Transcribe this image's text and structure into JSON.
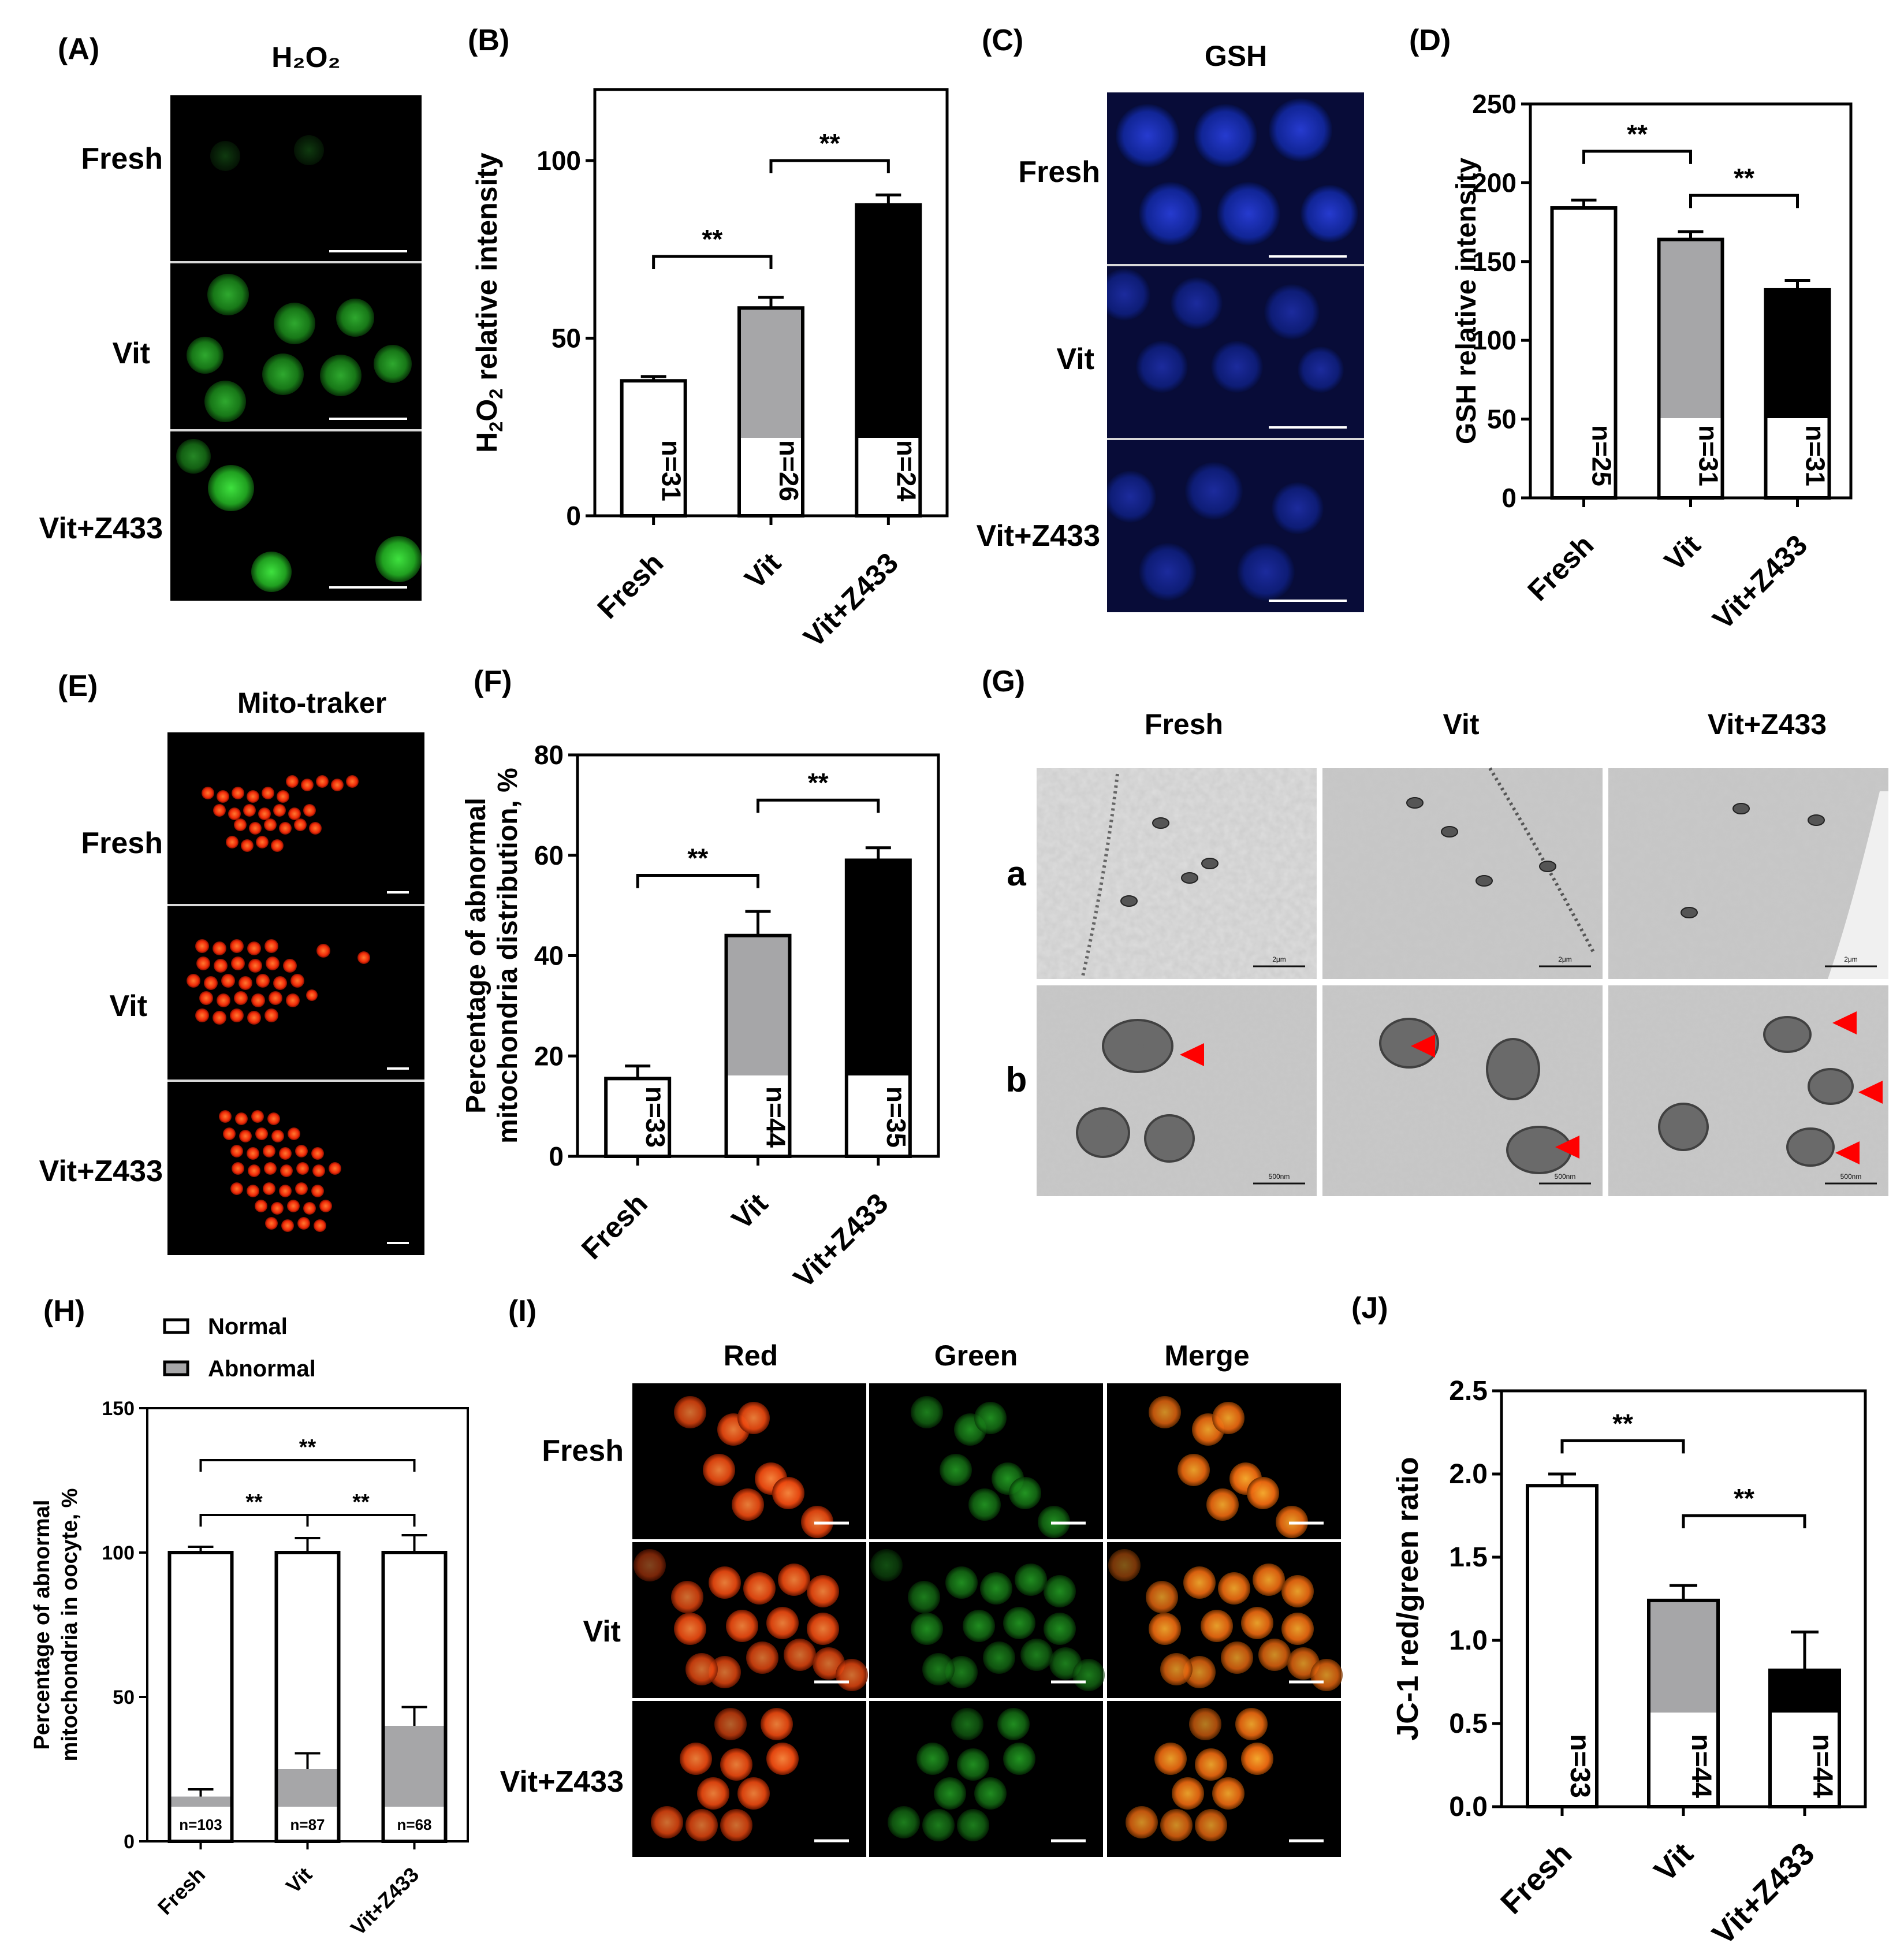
{
  "panels": {
    "A": {
      "label": "(A)",
      "title": "H₂O₂",
      "rows": [
        "Fresh",
        "Vit",
        "Vit+Z433"
      ]
    },
    "C": {
      "label": "(C)",
      "title": "GSH",
      "rows": [
        "Fresh",
        "Vit",
        "Vit+Z433"
      ]
    },
    "E": {
      "label": "(E)",
      "title": "Mito-traker",
      "rows": [
        "Fresh",
        "Vit",
        "Vit+Z433"
      ]
    },
    "G": {
      "label": "(G)",
      "columns": [
        "Fresh",
        "Vit",
        "Vit+Z433"
      ],
      "rows": [
        "a",
        "b"
      ],
      "scale_a": "2μm",
      "scale_b": "500nm"
    },
    "I": {
      "label": "(I)",
      "columns": [
        "Red",
        "Green",
        "Merge"
      ],
      "rows": [
        "Fresh",
        "Vit",
        "Vit+Z433"
      ]
    }
  },
  "colors": {
    "fresh": "#ffffff",
    "vit": "#a6a6a8",
    "vitz": "#000000",
    "h2o2": "#2fb52f",
    "gsh": "#1d2fb8",
    "mito": "#ff3a10",
    "arrow": "#ff0000"
  },
  "chart_data": [
    {
      "id": "B",
      "label": "(B)",
      "type": "bar",
      "categories": [
        "Fresh",
        "Vit",
        "Vit+Z433"
      ],
      "values": [
        38,
        58.5,
        87.5
      ],
      "errors": [
        1.2,
        3,
        2.8
      ],
      "n_labels": [
        "n=31",
        "n=26",
        "n=24"
      ],
      "ylabel": "H2O2 relative intensity",
      "ylim": [
        0,
        120
      ],
      "yticks": [
        0,
        50,
        100
      ],
      "significance": [
        {
          "from": 0,
          "to": 1,
          "label": "**",
          "y": 73
        },
        {
          "from": 1,
          "to": 2,
          "label": "**",
          "y": 100
        }
      ]
    },
    {
      "id": "D",
      "label": "(D)",
      "type": "bar",
      "categories": [
        "Fresh",
        "Vit",
        "Vit+Z433"
      ],
      "values": [
        184,
        164,
        132
      ],
      "errors": [
        5,
        5,
        6
      ],
      "n_labels": [
        "n=25",
        "n=31",
        "n=31"
      ],
      "ylabel": "GSH relative intensity",
      "ylim": [
        0,
        250
      ],
      "yticks": [
        0,
        50,
        100,
        150,
        200,
        250
      ],
      "significance": [
        {
          "from": 0,
          "to": 1,
          "label": "**",
          "y": 220
        },
        {
          "from": 1,
          "to": 2,
          "label": "**",
          "y": 192
        }
      ]
    },
    {
      "id": "F",
      "label": "(F)",
      "type": "bar",
      "categories": [
        "Fresh",
        "Vit",
        "Vit+Z433"
      ],
      "values": [
        15.5,
        44,
        59
      ],
      "errors": [
        2.5,
        4.8,
        2.5
      ],
      "n_labels": [
        "n=33",
        "n=44",
        "n=35"
      ],
      "ylabel_lines": [
        "Percentage of abnormal",
        "mitochondria distribution, %"
      ],
      "ylim": [
        0,
        80
      ],
      "yticks": [
        0,
        20,
        40,
        60,
        80
      ],
      "significance": [
        {
          "from": 0,
          "to": 1,
          "label": "**",
          "y": 56
        },
        {
          "from": 1,
          "to": 2,
          "label": "**",
          "y": 71
        }
      ]
    },
    {
      "id": "H",
      "label": "(H)",
      "type": "bar",
      "categories": [
        "Fresh",
        "Vit",
        "Vit+Z433"
      ],
      "series": [
        {
          "name": "Normal",
          "values": [
            100,
            100,
            100
          ],
          "errors": [
            2,
            5,
            6
          ]
        },
        {
          "name": "Abnormal",
          "values": [
            15.5,
            25,
            40
          ],
          "errors": [
            2.5,
            5.5,
            6.5
          ]
        }
      ],
      "n_labels": [
        "n=103",
        "n=87",
        "n=68"
      ],
      "ylabel_lines": [
        "Percentage of abnormal",
        "mitochondria in oocyte, %"
      ],
      "ylim": [
        0,
        150
      ],
      "yticks": [
        0,
        50,
        100,
        150
      ],
      "legend": "top-left",
      "significance": [
        {
          "from": 0,
          "to": 1,
          "label": "**",
          "y": 113
        },
        {
          "from": 1,
          "to": 2,
          "label": "**",
          "y": 113
        },
        {
          "from": 0,
          "to": 2,
          "label": "**",
          "y": 132
        }
      ]
    },
    {
      "id": "J",
      "label": "(J)",
      "type": "bar",
      "categories": [
        "Fresh",
        "Vit",
        "Vit+Z433"
      ],
      "values": [
        1.93,
        1.24,
        0.82
      ],
      "errors": [
        0.07,
        0.09,
        0.23
      ],
      "n_labels": [
        "n=33",
        "n=44",
        "n=44"
      ],
      "ylabel": "JC-1 red/green ratio",
      "ylim": [
        0,
        2.5
      ],
      "yticks": [
        0.0,
        0.5,
        1.0,
        1.5,
        2.0,
        2.5
      ],
      "significance": [
        {
          "from": 0,
          "to": 1,
          "label": "**",
          "y": 2.2
        },
        {
          "from": 1,
          "to": 2,
          "label": "**",
          "y": 1.75
        }
      ]
    }
  ]
}
